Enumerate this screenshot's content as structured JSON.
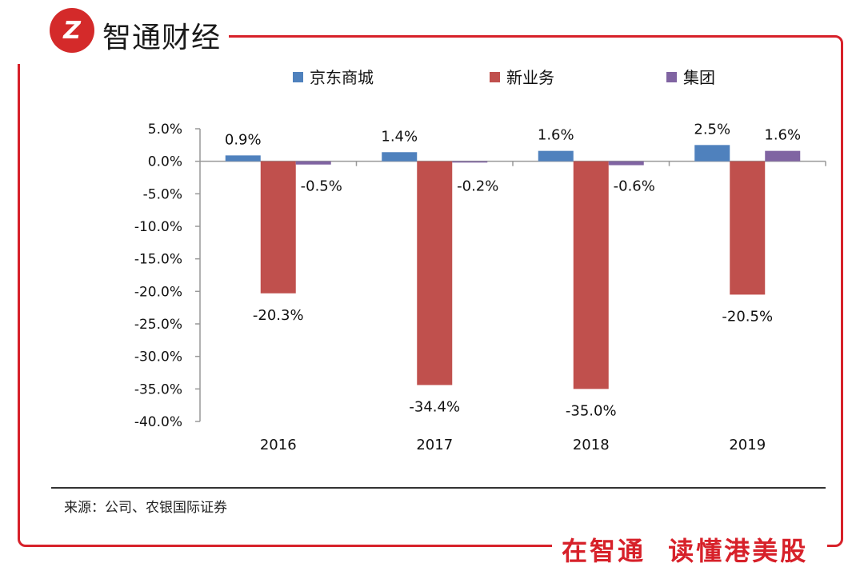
{
  "brand": {
    "logo_mark": "Z",
    "name": "智通财经"
  },
  "slogan": "在智通  读懂港美股",
  "source": "来源：公司、农银国际证券",
  "colors": {
    "jd_mall": "#4f81bd",
    "new_business": "#c0504d",
    "group": "#8064a2",
    "frame": "#d7212a"
  },
  "chart_data": {
    "type": "bar",
    "title": "",
    "xlabel": "",
    "ylabel": "",
    "categories": [
      "2016",
      "2017",
      "2018",
      "2019"
    ],
    "series": [
      {
        "name": "京东商城",
        "values": [
          0.9,
          1.4,
          1.6,
          2.5
        ],
        "labels": [
          "0.9%",
          "1.4%",
          "1.6%",
          "2.5%"
        ]
      },
      {
        "name": "新业务",
        "values": [
          -20.3,
          -34.4,
          -35.0,
          -20.5
        ],
        "labels": [
          "-20.3%",
          "-34.4%",
          "-35.0%",
          "-20.5%"
        ]
      },
      {
        "name": "集团",
        "values": [
          -0.5,
          -0.2,
          -0.6,
          1.6
        ],
        "labels": [
          "-0.5%",
          "-0.2%",
          "-0.6%",
          "1.6%"
        ]
      }
    ],
    "ylim": [
      -40,
      5
    ],
    "yticks": [
      5,
      0,
      -5,
      -10,
      -15,
      -20,
      -25,
      -30,
      -35,
      -40
    ],
    "ytick_labels": [
      "5.0%",
      "0.0%",
      "-5.0%",
      "-10.0%",
      "-15.0%",
      "-20.0%",
      "-25.0%",
      "-30.0%",
      "-35.0%",
      "-40.0%"
    ],
    "legend_position": "top"
  }
}
